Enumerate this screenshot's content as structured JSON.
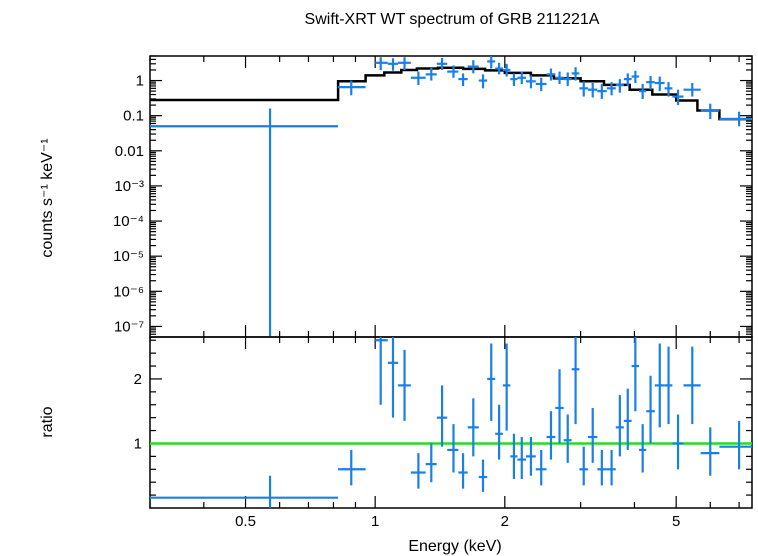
{
  "chart_data": [
    {
      "type": "scatter",
      "panel": "spectrum",
      "title": "Swift-XRT WT spectrum of GRB 211221A",
      "xlabel": "Energy (keV)",
      "ylabel": "counts s⁻¹ keV⁻¹",
      "xscale": "log",
      "yscale": "log",
      "xlim": [
        0.3,
        7.5
      ],
      "ylim": [
        5e-08,
        5
      ],
      "y_ticks": [
        {
          "value": 1,
          "label": "1"
        },
        {
          "value": 0.1,
          "label": "0.1"
        },
        {
          "value": 0.01,
          "label": "0.01"
        },
        {
          "value": 0.001,
          "label": "10⁻³"
        },
        {
          "value": 0.0001,
          "label": "10⁻⁴"
        },
        {
          "value": 1e-05,
          "label": "10⁻⁵"
        },
        {
          "value": 1e-06,
          "label": "10⁻⁶"
        },
        {
          "value": 1e-07,
          "label": "10⁻⁷"
        }
      ],
      "data_color": "#1a7fe6",
      "model_color": "#000000",
      "data_points": [
        {
          "x": 0.57,
          "xlo": 0.3,
          "xhi": 0.82,
          "y": 0.05,
          "ylo": 5e-08,
          "yhi": 0.16
        },
        {
          "x": 0.88,
          "xlo": 0.82,
          "xhi": 0.95,
          "y": 0.65,
          "ylo": 0.38,
          "yhi": 1.0
        },
        {
          "x": 1.03,
          "xlo": 1.0,
          "xhi": 1.07,
          "y": 3.2,
          "ylo": 2.0,
          "yhi": 4.6
        },
        {
          "x": 1.1,
          "xlo": 1.07,
          "xhi": 1.13,
          "y": 3.0,
          "ylo": 1.9,
          "yhi": 4.3
        },
        {
          "x": 1.17,
          "xlo": 1.13,
          "xhi": 1.21,
          "y": 3.2,
          "ylo": 2.0,
          "yhi": 4.6
        },
        {
          "x": 1.26,
          "xlo": 1.21,
          "xhi": 1.31,
          "y": 1.2,
          "ylo": 0.75,
          "yhi": 1.8
        },
        {
          "x": 1.35,
          "xlo": 1.31,
          "xhi": 1.39,
          "y": 1.5,
          "ylo": 1.0,
          "yhi": 2.3
        },
        {
          "x": 1.43,
          "xlo": 1.39,
          "xhi": 1.47,
          "y": 3.0,
          "ylo": 2.0,
          "yhi": 4.4
        },
        {
          "x": 1.52,
          "xlo": 1.47,
          "xhi": 1.56,
          "y": 1.8,
          "ylo": 1.2,
          "yhi": 2.7
        },
        {
          "x": 1.6,
          "xlo": 1.56,
          "xhi": 1.64,
          "y": 1.1,
          "ylo": 0.7,
          "yhi": 1.6
        },
        {
          "x": 1.69,
          "xlo": 1.64,
          "xhi": 1.74,
          "y": 2.5,
          "ylo": 1.6,
          "yhi": 3.8
        },
        {
          "x": 1.78,
          "xlo": 1.74,
          "xhi": 1.82,
          "y": 1.0,
          "ylo": 0.6,
          "yhi": 1.5
        },
        {
          "x": 1.86,
          "xlo": 1.82,
          "xhi": 1.9,
          "y": 3.5,
          "ylo": 2.2,
          "yhi": 5.0
        },
        {
          "x": 1.94,
          "xlo": 1.9,
          "xhi": 1.98,
          "y": 2.2,
          "ylo": 1.5,
          "yhi": 3.2
        },
        {
          "x": 2.02,
          "xlo": 1.98,
          "xhi": 2.06,
          "y": 2.0,
          "ylo": 1.3,
          "yhi": 3.0
        },
        {
          "x": 2.1,
          "xlo": 2.06,
          "xhi": 2.14,
          "y": 1.1,
          "ylo": 0.7,
          "yhi": 1.6
        },
        {
          "x": 2.19,
          "xlo": 2.14,
          "xhi": 2.24,
          "y": 1.2,
          "ylo": 0.8,
          "yhi": 1.8
        },
        {
          "x": 2.3,
          "xlo": 2.24,
          "xhi": 2.36,
          "y": 0.95,
          "ylo": 0.6,
          "yhi": 1.4
        },
        {
          "x": 2.43,
          "xlo": 2.36,
          "xhi": 2.5,
          "y": 0.8,
          "ylo": 0.5,
          "yhi": 1.2
        },
        {
          "x": 2.56,
          "xlo": 2.5,
          "xhi": 2.62,
          "y": 1.5,
          "ylo": 1.0,
          "yhi": 2.2
        },
        {
          "x": 2.68,
          "xlo": 2.62,
          "xhi": 2.74,
          "y": 1.2,
          "ylo": 0.8,
          "yhi": 1.8
        },
        {
          "x": 2.8,
          "xlo": 2.74,
          "xhi": 2.86,
          "y": 1.1,
          "ylo": 0.7,
          "yhi": 1.7
        },
        {
          "x": 2.92,
          "xlo": 2.86,
          "xhi": 2.98,
          "y": 1.6,
          "ylo": 1.0,
          "yhi": 2.4
        },
        {
          "x": 3.05,
          "xlo": 2.98,
          "xhi": 3.12,
          "y": 0.6,
          "ylo": 0.35,
          "yhi": 0.95
        },
        {
          "x": 3.2,
          "xlo": 3.12,
          "xhi": 3.28,
          "y": 0.55,
          "ylo": 0.33,
          "yhi": 0.85
        },
        {
          "x": 3.36,
          "xlo": 3.28,
          "xhi": 3.45,
          "y": 0.5,
          "ylo": 0.3,
          "yhi": 0.8
        },
        {
          "x": 3.54,
          "xlo": 3.45,
          "xhi": 3.62,
          "y": 0.6,
          "ylo": 0.38,
          "yhi": 0.9
        },
        {
          "x": 3.7,
          "xlo": 3.62,
          "xhi": 3.78,
          "y": 0.75,
          "ylo": 0.45,
          "yhi": 1.1
        },
        {
          "x": 3.86,
          "xlo": 3.78,
          "xhi": 3.94,
          "y": 1.1,
          "ylo": 0.7,
          "yhi": 1.6
        },
        {
          "x": 4.02,
          "xlo": 3.94,
          "xhi": 4.1,
          "y": 1.3,
          "ylo": 0.85,
          "yhi": 1.9
        },
        {
          "x": 4.18,
          "xlo": 4.1,
          "xhi": 4.26,
          "y": 0.5,
          "ylo": 0.3,
          "yhi": 0.8
        },
        {
          "x": 4.36,
          "xlo": 4.26,
          "xhi": 4.46,
          "y": 0.9,
          "ylo": 0.55,
          "yhi": 1.35
        },
        {
          "x": 4.58,
          "xlo": 4.46,
          "xhi": 4.7,
          "y": 0.85,
          "ylo": 0.5,
          "yhi": 1.3
        },
        {
          "x": 4.8,
          "xlo": 4.7,
          "xhi": 4.9,
          "y": 0.6,
          "ylo": 0.35,
          "yhi": 0.9
        },
        {
          "x": 5.05,
          "xlo": 4.9,
          "xhi": 5.2,
          "y": 0.35,
          "ylo": 0.2,
          "yhi": 0.55
        },
        {
          "x": 5.45,
          "xlo": 5.2,
          "xhi": 5.7,
          "y": 0.55,
          "ylo": 0.35,
          "yhi": 0.85
        },
        {
          "x": 6.0,
          "xlo": 5.7,
          "xhi": 6.3,
          "y": 0.14,
          "ylo": 0.08,
          "yhi": 0.22
        },
        {
          "x": 7.0,
          "xlo": 6.3,
          "xhi": 7.5,
          "y": 0.08,
          "ylo": 0.05,
          "yhi": 0.13
        }
      ],
      "model_steps": [
        {
          "xlo": 0.3,
          "xhi": 0.82,
          "y": 0.28
        },
        {
          "xlo": 0.82,
          "xhi": 0.95,
          "y": 0.95
        },
        {
          "xlo": 0.95,
          "xhi": 1.05,
          "y": 1.4
        },
        {
          "xlo": 1.05,
          "xhi": 1.15,
          "y": 1.7
        },
        {
          "xlo": 1.15,
          "xhi": 1.25,
          "y": 2.0
        },
        {
          "xlo": 1.25,
          "xhi": 1.4,
          "y": 2.2
        },
        {
          "xlo": 1.4,
          "xhi": 1.6,
          "y": 2.3
        },
        {
          "xlo": 1.6,
          "xhi": 1.8,
          "y": 2.15
        },
        {
          "xlo": 1.8,
          "xhi": 2.0,
          "y": 1.95
        },
        {
          "xlo": 2.0,
          "xhi": 2.3,
          "y": 1.65
        },
        {
          "xlo": 2.3,
          "xhi": 2.6,
          "y": 1.4
        },
        {
          "xlo": 2.6,
          "xhi": 3.0,
          "y": 1.15
        },
        {
          "xlo": 3.0,
          "xhi": 3.4,
          "y": 0.95
        },
        {
          "xlo": 3.4,
          "xhi": 3.9,
          "y": 0.75
        },
        {
          "xlo": 3.9,
          "xhi": 4.4,
          "y": 0.55
        },
        {
          "xlo": 4.4,
          "xhi": 5.0,
          "y": 0.4
        },
        {
          "xlo": 5.0,
          "xhi": 5.6,
          "y": 0.27
        },
        {
          "xlo": 5.6,
          "xhi": 6.3,
          "y": 0.14
        },
        {
          "xlo": 6.3,
          "xhi": 7.5,
          "y": 0.08
        }
      ]
    },
    {
      "type": "scatter",
      "panel": "ratio",
      "xlabel": "Energy (keV)",
      "ylabel": "ratio",
      "xscale": "log",
      "yscale": "linear",
      "xlim": [
        0.3,
        7.5
      ],
      "ylim": [
        0,
        2.65
      ],
      "x_ticks": [
        {
          "value": 0.5,
          "label": "0.5"
        },
        {
          "value": 1,
          "label": "1"
        },
        {
          "value": 2,
          "label": "2"
        },
        {
          "value": 5,
          "label": "5"
        }
      ],
      "y_ticks": [
        {
          "value": 1,
          "label": "1"
        },
        {
          "value": 2,
          "label": "2"
        }
      ],
      "reference_line": {
        "y": 1,
        "color": "#22dd22"
      },
      "data_color": "#1a7fe6",
      "data_points": [
        {
          "x": 0.57,
          "xlo": 0.3,
          "xhi": 0.82,
          "y": 0.16,
          "ylo": 0.0,
          "yhi": 0.5
        },
        {
          "x": 0.88,
          "xlo": 0.82,
          "xhi": 0.95,
          "y": 0.6,
          "ylo": 0.35,
          "yhi": 0.9
        },
        {
          "x": 1.03,
          "xlo": 1.0,
          "xhi": 1.07,
          "y": 2.6,
          "ylo": 1.6,
          "yhi": 2.65
        },
        {
          "x": 1.1,
          "xlo": 1.07,
          "xhi": 1.13,
          "y": 2.25,
          "ylo": 1.4,
          "yhi": 2.65
        },
        {
          "x": 1.17,
          "xlo": 1.13,
          "xhi": 1.21,
          "y": 1.9,
          "ylo": 1.35,
          "yhi": 2.45
        },
        {
          "x": 1.26,
          "xlo": 1.21,
          "xhi": 1.31,
          "y": 0.55,
          "ylo": 0.3,
          "yhi": 0.85
        },
        {
          "x": 1.35,
          "xlo": 1.31,
          "xhi": 1.39,
          "y": 0.68,
          "ylo": 0.4,
          "yhi": 1.0
        },
        {
          "x": 1.43,
          "xlo": 1.39,
          "xhi": 1.47,
          "y": 1.4,
          "ylo": 0.95,
          "yhi": 1.9
        },
        {
          "x": 1.52,
          "xlo": 1.47,
          "xhi": 1.56,
          "y": 0.9,
          "ylo": 0.55,
          "yhi": 1.3
        },
        {
          "x": 1.6,
          "xlo": 1.56,
          "xhi": 1.64,
          "y": 0.55,
          "ylo": 0.3,
          "yhi": 0.85
        },
        {
          "x": 1.69,
          "xlo": 1.64,
          "xhi": 1.74,
          "y": 1.25,
          "ylo": 0.8,
          "yhi": 1.7
        },
        {
          "x": 1.78,
          "xlo": 1.74,
          "xhi": 1.82,
          "y": 0.48,
          "ylo": 0.25,
          "yhi": 0.75
        },
        {
          "x": 1.86,
          "xlo": 1.82,
          "xhi": 1.9,
          "y": 2.0,
          "ylo": 1.35,
          "yhi": 2.55
        },
        {
          "x": 1.94,
          "xlo": 1.9,
          "xhi": 1.98,
          "y": 1.15,
          "ylo": 0.75,
          "yhi": 1.6
        },
        {
          "x": 2.02,
          "xlo": 1.98,
          "xhi": 2.06,
          "y": 1.9,
          "ylo": 1.2,
          "yhi": 2.55
        },
        {
          "x": 2.1,
          "xlo": 2.06,
          "xhi": 2.14,
          "y": 0.8,
          "ylo": 0.45,
          "yhi": 1.15
        },
        {
          "x": 2.19,
          "xlo": 2.14,
          "xhi": 2.24,
          "y": 0.75,
          "ylo": 0.45,
          "yhi": 1.1
        },
        {
          "x": 2.3,
          "xlo": 2.24,
          "xhi": 2.36,
          "y": 0.8,
          "ylo": 0.5,
          "yhi": 1.1
        },
        {
          "x": 2.43,
          "xlo": 2.36,
          "xhi": 2.5,
          "y": 0.6,
          "ylo": 0.35,
          "yhi": 0.9
        },
        {
          "x": 2.56,
          "xlo": 2.5,
          "xhi": 2.62,
          "y": 1.1,
          "ylo": 0.75,
          "yhi": 1.5
        },
        {
          "x": 2.68,
          "xlo": 2.62,
          "xhi": 2.74,
          "y": 1.55,
          "ylo": 1.0,
          "yhi": 2.15
        },
        {
          "x": 2.8,
          "xlo": 2.74,
          "xhi": 2.86,
          "y": 1.05,
          "ylo": 0.7,
          "yhi": 1.45
        },
        {
          "x": 2.92,
          "xlo": 2.86,
          "xhi": 2.98,
          "y": 2.15,
          "ylo": 1.3,
          "yhi": 2.65
        },
        {
          "x": 3.05,
          "xlo": 2.98,
          "xhi": 3.12,
          "y": 0.6,
          "ylo": 0.35,
          "yhi": 0.95
        },
        {
          "x": 3.2,
          "xlo": 3.12,
          "xhi": 3.28,
          "y": 1.1,
          "ylo": 0.7,
          "yhi": 1.55
        },
        {
          "x": 3.36,
          "xlo": 3.28,
          "xhi": 3.45,
          "y": 0.6,
          "ylo": 0.35,
          "yhi": 0.9
        },
        {
          "x": 3.54,
          "xlo": 3.45,
          "xhi": 3.62,
          "y": 0.6,
          "ylo": 0.35,
          "yhi": 0.9
        },
        {
          "x": 3.7,
          "xlo": 3.62,
          "xhi": 3.78,
          "y": 1.25,
          "ylo": 0.8,
          "yhi": 1.75
        },
        {
          "x": 3.86,
          "xlo": 3.78,
          "xhi": 3.94,
          "y": 1.35,
          "ylo": 0.9,
          "yhi": 1.85
        },
        {
          "x": 4.02,
          "xlo": 3.94,
          "xhi": 4.1,
          "y": 2.2,
          "ylo": 1.5,
          "yhi": 2.65
        },
        {
          "x": 4.18,
          "xlo": 4.1,
          "xhi": 4.26,
          "y": 0.9,
          "ylo": 0.55,
          "yhi": 1.3
        },
        {
          "x": 4.36,
          "xlo": 4.26,
          "xhi": 4.46,
          "y": 1.5,
          "ylo": 1.0,
          "yhi": 2.05
        },
        {
          "x": 4.58,
          "xlo": 4.46,
          "xhi": 4.7,
          "y": 1.9,
          "ylo": 1.25,
          "yhi": 2.55
        },
        {
          "x": 4.8,
          "xlo": 4.7,
          "xhi": 4.9,
          "y": 1.9,
          "ylo": 1.3,
          "yhi": 2.5
        },
        {
          "x": 5.05,
          "xlo": 4.9,
          "xhi": 5.2,
          "y": 1.0,
          "ylo": 0.6,
          "yhi": 1.45
        },
        {
          "x": 5.45,
          "xlo": 5.2,
          "xhi": 5.7,
          "y": 1.9,
          "ylo": 1.3,
          "yhi": 2.5
        },
        {
          "x": 6.0,
          "xlo": 5.7,
          "xhi": 6.3,
          "y": 0.85,
          "ylo": 0.5,
          "yhi": 1.25
        },
        {
          "x": 7.0,
          "xlo": 6.3,
          "xhi": 7.5,
          "y": 0.95,
          "ylo": 0.6,
          "yhi": 1.35
        }
      ]
    }
  ]
}
